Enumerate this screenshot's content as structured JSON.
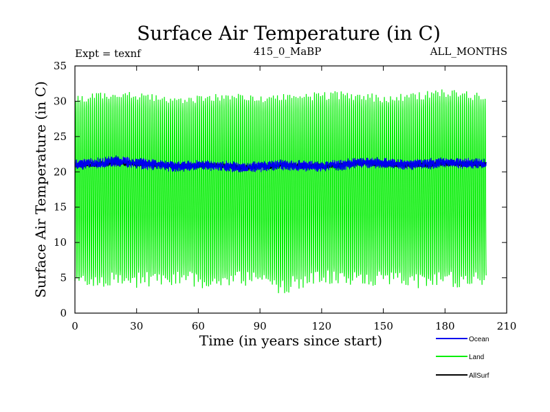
{
  "chart_data": {
    "type": "line",
    "title": "Surface Air Temperature (in C)",
    "subtitle_left": "Expt = texnf",
    "subtitle_center": "415_0_MaBP",
    "subtitle_right": "ALL_MONTHS",
    "xlabel": "Time (in years since start)",
    "ylabel": "Surface Air Temperature (in C)",
    "xlim": [
      0,
      210
    ],
    "ylim": [
      0,
      35
    ],
    "x_ticks": [
      0,
      30,
      60,
      90,
      120,
      150,
      180,
      210
    ],
    "y_ticks": [
      0,
      5,
      10,
      15,
      20,
      25,
      30,
      35
    ],
    "series": [
      {
        "name": "Land",
        "color": "#00ee00",
        "description_values": "monthly seasonal cycle, years 0-200",
        "summer_peaks_by_decade": [
          31,
          31.2,
          31.5,
          31.3,
          31,
          30.8,
          31,
          31.2,
          31.3,
          31,
          31,
          31.2,
          31.3,
          31.5,
          31.2,
          31,
          31.2,
          31.4,
          31.8,
          31.5,
          31
        ],
        "winter_troughs_by_decade": [
          3,
          3.5,
          4,
          3.5,
          3.8,
          4,
          3.5,
          3.6,
          4,
          3.5,
          2.5,
          3.5,
          4,
          3.8,
          3.5,
          4,
          3.6,
          3.5,
          3.8,
          3.5,
          4
        ]
      },
      {
        "name": "Ocean",
        "color": "#0000ee",
        "values_by_decade": [
          21.0,
          21.2,
          21.5,
          21.2,
          21.0,
          20.8,
          21.0,
          20.9,
          20.6,
          20.7,
          21.0,
          20.9,
          20.8,
          21.0,
          21.4,
          21.2,
          21.0,
          21.1,
          21.3,
          21.2,
          21.2
        ],
        "amplitude": 0.6
      },
      {
        "name": "AllSurf",
        "color": "#000000",
        "values_by_decade": [
          21.0,
          21.1,
          21.3,
          21.1,
          21.0,
          20.8,
          20.9,
          20.9,
          20.6,
          20.7,
          20.9,
          20.9,
          20.8,
          21.0,
          21.3,
          21.1,
          21.0,
          21.0,
          21.2,
          21.1,
          21.1
        ],
        "amplitude": 0.3
      }
    ],
    "legend": {
      "placement": "bottom-right",
      "entries": [
        "Ocean",
        "Land",
        "AllSurf"
      ]
    }
  }
}
